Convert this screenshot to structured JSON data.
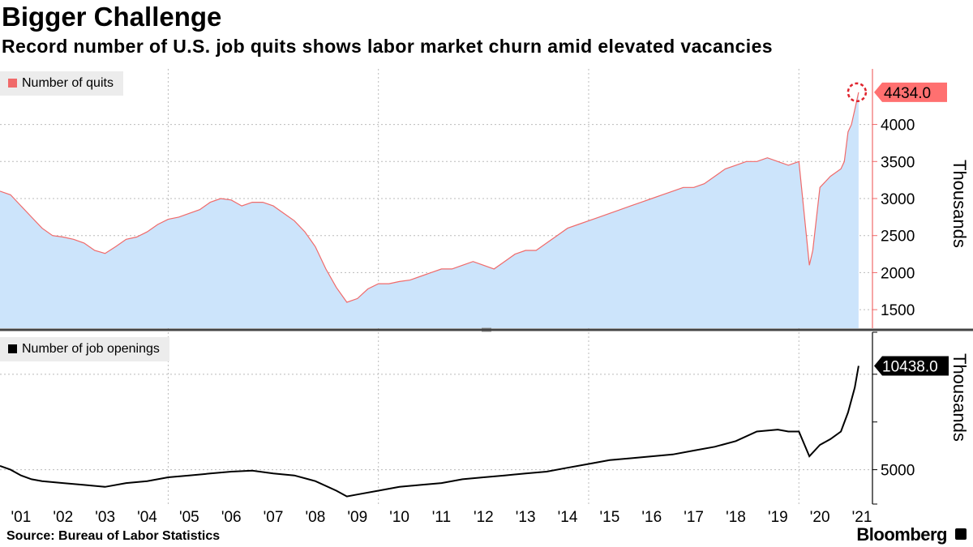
{
  "header": {
    "title": "Bigger Challenge",
    "subtitle": "Record number of U.S. job quits shows labor market churn amid elevated vacancies"
  },
  "footer": {
    "source": "Source: Bureau of Labor Statistics",
    "brand": "Bloomberg"
  },
  "colors": {
    "quits_line": "#f06a6a",
    "quits_fill": "#cce4fb",
    "quits_label_bg": "#ff7070",
    "openings_line": "#000000",
    "grid": "#bbbbbb",
    "divider": "#444444"
  },
  "chart_data": [
    {
      "type": "area",
      "title": "Record number of U.S. job quits shows labor market churn amid elevated vacancies",
      "ylabel": "Thousands",
      "ylim": [
        1250,
        4750
      ],
      "yticks": [
        1500,
        2000,
        2500,
        3000,
        3500,
        4000
      ],
      "xlim": [
        2001.0,
        2021.75
      ],
      "legend": "top-left",
      "grid": true,
      "series": [
        {
          "name": "Number of quits",
          "last_value_label": "4434.0",
          "x": [
            2001.0,
            2001.25,
            2001.5,
            2001.75,
            2002.0,
            2002.25,
            2002.5,
            2002.75,
            2003.0,
            2003.25,
            2003.5,
            2003.75,
            2004.0,
            2004.25,
            2004.5,
            2004.75,
            2005.0,
            2005.25,
            2005.5,
            2005.75,
            2006.0,
            2006.25,
            2006.5,
            2006.75,
            2007.0,
            2007.25,
            2007.5,
            2007.75,
            2008.0,
            2008.25,
            2008.5,
            2008.75,
            2009.0,
            2009.25,
            2009.5,
            2009.75,
            2010.0,
            2010.25,
            2010.5,
            2010.75,
            2011.0,
            2011.25,
            2011.5,
            2011.75,
            2012.0,
            2012.25,
            2012.5,
            2012.75,
            2013.0,
            2013.25,
            2013.5,
            2013.75,
            2014.0,
            2014.25,
            2014.5,
            2014.75,
            2015.0,
            2015.25,
            2015.5,
            2015.75,
            2016.0,
            2016.25,
            2016.5,
            2016.75,
            2017.0,
            2017.25,
            2017.5,
            2017.75,
            2018.0,
            2018.25,
            2018.5,
            2018.75,
            2019.0,
            2019.25,
            2019.5,
            2019.75,
            2020.0,
            2020.25,
            2020.33,
            2020.5,
            2020.75,
            2021.0,
            2021.08,
            2021.17,
            2021.25,
            2021.33,
            2021.42
          ],
          "values": [
            3100,
            3050,
            2900,
            2750,
            2600,
            2500,
            2480,
            2450,
            2400,
            2300,
            2260,
            2350,
            2450,
            2480,
            2550,
            2650,
            2720,
            2750,
            2800,
            2850,
            2950,
            3000,
            2980,
            2900,
            2950,
            2950,
            2900,
            2800,
            2700,
            2550,
            2350,
            2050,
            1800,
            1600,
            1650,
            1780,
            1850,
            1850,
            1880,
            1900,
            1950,
            2000,
            2050,
            2050,
            2100,
            2150,
            2100,
            2050,
            2150,
            2250,
            2300,
            2300,
            2400,
            2500,
            2600,
            2650,
            2700,
            2750,
            2800,
            2850,
            2900,
            2950,
            3000,
            3050,
            3100,
            3150,
            3150,
            3200,
            3300,
            3400,
            3450,
            3500,
            3500,
            3550,
            3500,
            3450,
            3500,
            2100,
            2300,
            3150,
            3300,
            3400,
            3500,
            3900,
            4000,
            4200,
            4434
          ]
        }
      ]
    },
    {
      "type": "line",
      "ylabel": "Thousands",
      "ylim": [
        3200,
        12200
      ],
      "yticks": [
        5000
      ],
      "xlim": [
        2001.0,
        2021.75
      ],
      "legend": "top-left",
      "grid": true,
      "series": [
        {
          "name": "Number of job openings",
          "last_value_label": "10438.0",
          "x": [
            2001.0,
            2001.25,
            2001.5,
            2001.75,
            2002.0,
            2002.5,
            2003.0,
            2003.5,
            2004.0,
            2004.5,
            2005.0,
            2005.5,
            2006.0,
            2006.5,
            2007.0,
            2007.5,
            2008.0,
            2008.5,
            2009.0,
            2009.25,
            2009.5,
            2010.0,
            2010.5,
            2011.0,
            2011.5,
            2012.0,
            2012.5,
            2013.0,
            2013.5,
            2014.0,
            2014.5,
            2015.0,
            2015.5,
            2016.0,
            2016.5,
            2017.0,
            2017.5,
            2018.0,
            2018.5,
            2019.0,
            2019.5,
            2019.75,
            2020.0,
            2020.25,
            2020.5,
            2020.75,
            2021.0,
            2021.17,
            2021.33,
            2021.42
          ],
          "values": [
            5200,
            5000,
            4700,
            4500,
            4400,
            4300,
            4200,
            4100,
            4300,
            4400,
            4600,
            4700,
            4800,
            4900,
            4950,
            4800,
            4700,
            4400,
            3900,
            3600,
            3700,
            3900,
            4100,
            4200,
            4300,
            4500,
            4600,
            4700,
            4800,
            4900,
            5100,
            5300,
            5500,
            5600,
            5700,
            5800,
            6000,
            6200,
            6500,
            7000,
            7100,
            7000,
            7000,
            5700,
            6300,
            6600,
            7000,
            8000,
            9300,
            10438
          ]
        }
      ]
    }
  ],
  "x_axis": {
    "labels": [
      "'01",
      "'02",
      "'03",
      "'04",
      "'05",
      "'06",
      "'07",
      "'08",
      "'09",
      "'10",
      "'11",
      "'12",
      "'13",
      "'14",
      "'15",
      "'16",
      "'17",
      "'18",
      "'19",
      "'20",
      "'21"
    ]
  }
}
